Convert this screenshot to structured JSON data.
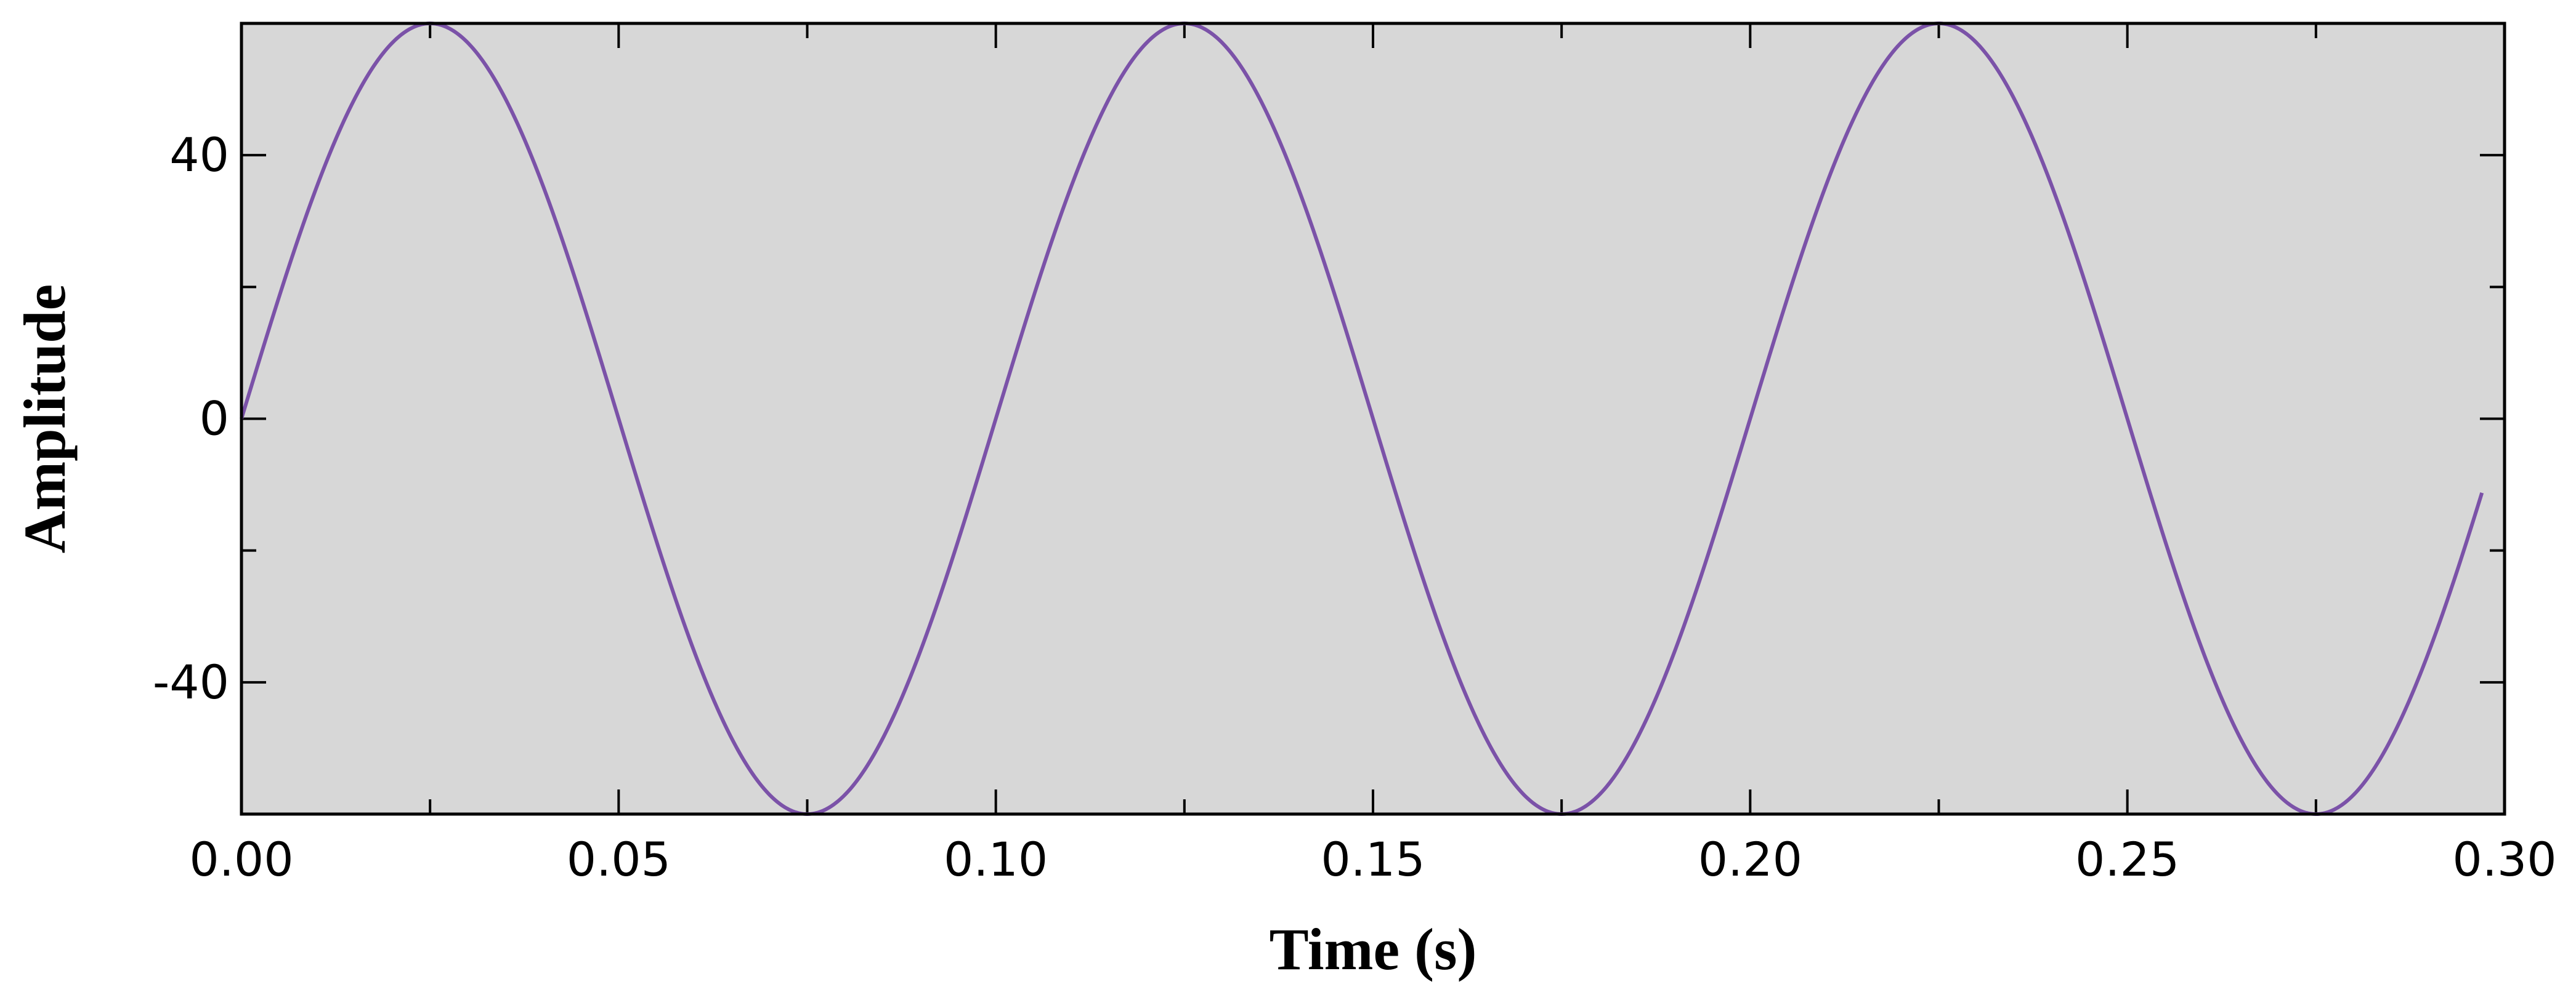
{
  "chart_data": {
    "type": "line",
    "title": "",
    "xlabel": "Time (s)",
    "ylabel": "Amplitude",
    "xlim": [
      0.0,
      0.3
    ],
    "ylim": [
      -60,
      60
    ],
    "x_ticks": [
      0.0,
      0.05,
      0.1,
      0.15,
      0.2,
      0.25,
      0.3
    ],
    "x_tick_labels": [
      "0.00",
      "0.05",
      "0.10",
      "0.15",
      "0.20",
      "0.25",
      "0.30"
    ],
    "y_ticks": [
      -40,
      0,
      40
    ],
    "y_tick_labels": [
      "-40",
      "0",
      "40"
    ],
    "grid": false,
    "legend": "none",
    "series": [
      {
        "x": [
          0.0,
          0.0125,
          0.025,
          0.0375,
          0.05,
          0.0625,
          0.075,
          0.0875,
          0.1,
          0.1125,
          0.125,
          0.1375,
          0.15,
          0.1625,
          0.175,
          0.1875,
          0.2,
          0.2125,
          0.225,
          0.2375,
          0.25,
          0.2625,
          0.275,
          0.2875,
          0.297
        ],
        "y": [
          0,
          42.4,
          60,
          42.4,
          0,
          -42.4,
          -60,
          -42.4,
          0,
          42.4,
          60,
          42.4,
          0,
          -42.4,
          -60,
          -42.4,
          0,
          42.4,
          60,
          42.4,
          0,
          -42.4,
          -60,
          -42.4,
          -11.2
        ],
        "color": "#7b52a8",
        "style": "sinusoid",
        "frequency_hz": 10,
        "amplitude": 60
      }
    ],
    "plot_background": "#d7d7d7",
    "axis_color": "#000000"
  }
}
